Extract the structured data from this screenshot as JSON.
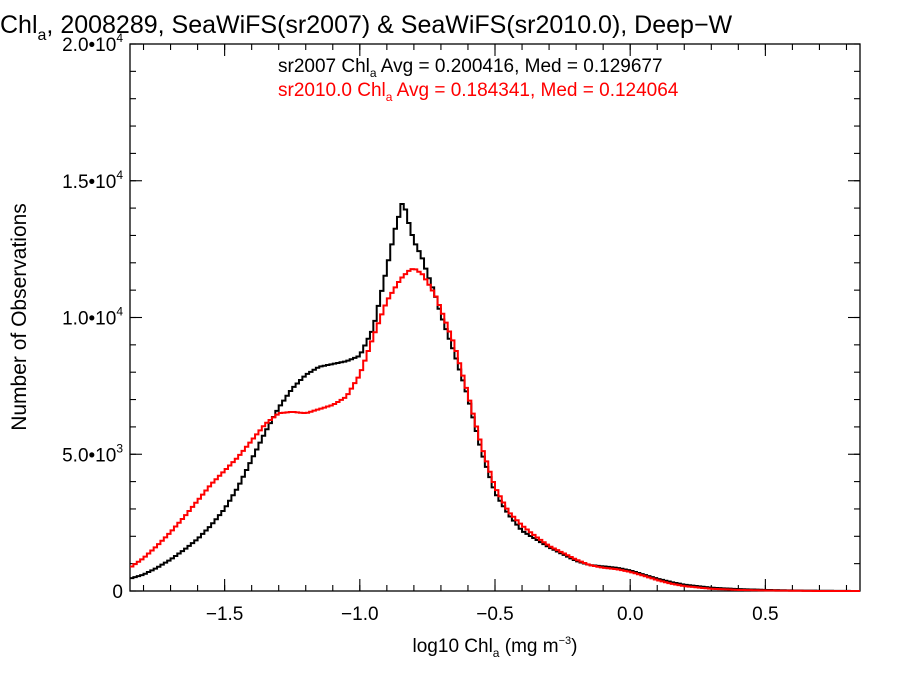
{
  "chart_data": {
    "type": "line",
    "step": true,
    "title": {
      "prefix": "Chl",
      "sub": "a",
      "rest": ", 2008289, SeaWiFS(sr2007) & SeaWiFS(sr2010.0), Deep−W"
    },
    "xlabel": {
      "prefix": "log10 Chl",
      "sub": "a",
      "rest": " (mg m",
      "sup": "−3",
      "end": ")"
    },
    "ylabel": "Number of Observations",
    "xlim": [
      -1.85,
      0.85
    ],
    "ylim": [
      0,
      20000
    ],
    "xticks": [
      {
        "value": -1.5,
        "label": "−1.5"
      },
      {
        "value": -1.0,
        "label": "−1.0"
      },
      {
        "value": -0.5,
        "label": "−0.5"
      },
      {
        "value": 0.0,
        "label": "0.0"
      },
      {
        "value": 0.5,
        "label": "0.5"
      }
    ],
    "yticks": [
      {
        "value": 0,
        "mant": "0",
        "exp": ""
      },
      {
        "value": 5000,
        "mant": "5.0•10",
        "exp": "3"
      },
      {
        "value": 10000,
        "mant": "1.0•10",
        "exp": "4"
      },
      {
        "value": 15000,
        "mant": "1.5•10",
        "exp": "4"
      },
      {
        "value": 20000,
        "mant": "2.0•10",
        "exp": "4"
      }
    ],
    "x_minor_step": 0.1,
    "y_minor_step": 1000,
    "grid": false,
    "annotations": [
      {
        "color": "#000000",
        "prefix": "sr2007 Chl",
        "sub": "a",
        "rest": " Avg = 0.200416, Med = 0.129677"
      },
      {
        "color": "#ff0000",
        "prefix": "sr2010.0 Chl",
        "sub": "a",
        "rest": " Avg = 0.184341, Med = 0.124064"
      }
    ],
    "series": [
      {
        "color": "#000000",
        "x": [
          -1.85,
          -1.8,
          -1.75,
          -1.7,
          -1.65,
          -1.6,
          -1.55,
          -1.5,
          -1.45,
          -1.4,
          -1.35,
          -1.3,
          -1.25,
          -1.2,
          -1.15,
          -1.1,
          -1.05,
          -1.0,
          -0.95,
          -0.9,
          -0.87,
          -0.85,
          -0.84,
          -0.82,
          -0.8,
          -0.77,
          -0.75,
          -0.72,
          -0.7,
          -0.65,
          -0.6,
          -0.55,
          -0.5,
          -0.45,
          -0.4,
          -0.35,
          -0.3,
          -0.25,
          -0.2,
          -0.15,
          -0.1,
          -0.05,
          0.0,
          0.05,
          0.1,
          0.15,
          0.2,
          0.3,
          0.4,
          0.5,
          0.6,
          0.7,
          0.85
        ],
        "y": [
          450,
          600,
          850,
          1150,
          1500,
          1900,
          2400,
          3000,
          3800,
          4800,
          5800,
          6700,
          7400,
          7900,
          8200,
          8300,
          8400,
          8600,
          9600,
          11800,
          13200,
          13900,
          14300,
          13500,
          12800,
          12200,
          11600,
          10800,
          10100,
          8700,
          7100,
          5100,
          3600,
          2800,
          2200,
          1900,
          1600,
          1350,
          1100,
          950,
          900,
          850,
          750,
          600,
          450,
          330,
          230,
          120,
          70,
          40,
          20,
          10,
          0
        ]
      },
      {
        "color": "#ff0000",
        "x": [
          -1.85,
          -1.8,
          -1.75,
          -1.7,
          -1.65,
          -1.6,
          -1.55,
          -1.5,
          -1.45,
          -1.4,
          -1.35,
          -1.3,
          -1.25,
          -1.2,
          -1.15,
          -1.1,
          -1.05,
          -1.0,
          -0.95,
          -0.9,
          -0.85,
          -0.82,
          -0.8,
          -0.77,
          -0.75,
          -0.72,
          -0.7,
          -0.65,
          -0.6,
          -0.55,
          -0.5,
          -0.45,
          -0.4,
          -0.35,
          -0.3,
          -0.25,
          -0.2,
          -0.15,
          -0.1,
          -0.05,
          0.0,
          0.05,
          0.1,
          0.15,
          0.2,
          0.3,
          0.4,
          0.5,
          0.6,
          0.7,
          0.85
        ],
        "y": [
          850,
          1200,
          1650,
          2150,
          2700,
          3300,
          3900,
          4400,
          4900,
          5500,
          6100,
          6500,
          6550,
          6500,
          6650,
          6800,
          7100,
          7900,
          9300,
          10600,
          11400,
          11700,
          11800,
          11600,
          11300,
          10800,
          10300,
          9000,
          7200,
          5300,
          3800,
          2900,
          2400,
          2000,
          1650,
          1400,
          1150,
          950,
          850,
          800,
          700,
          560,
          400,
          270,
          180,
          80,
          40,
          20,
          10,
          0,
          0
        ]
      }
    ]
  }
}
